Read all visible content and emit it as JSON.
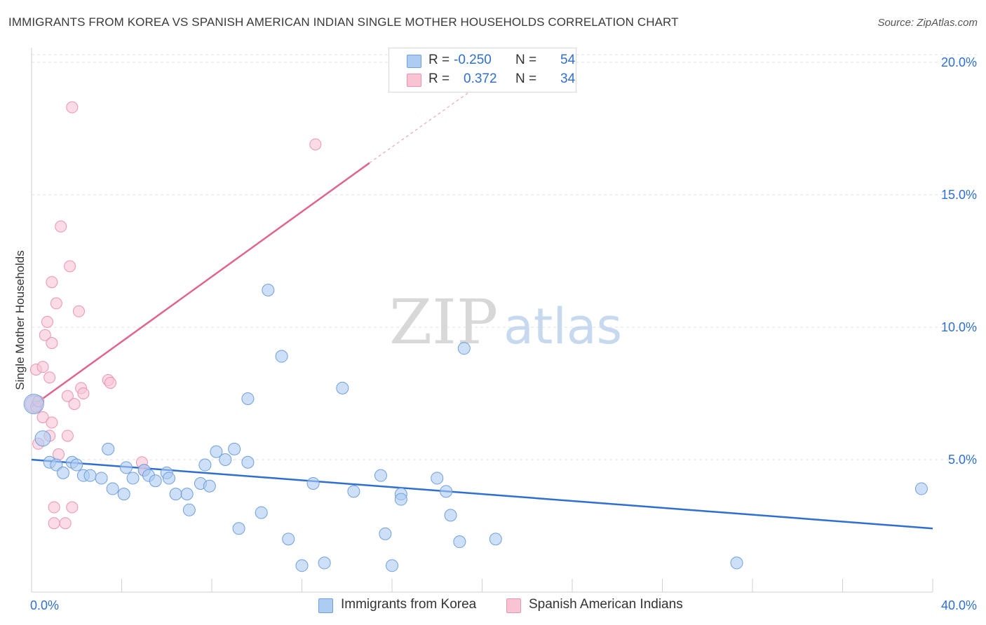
{
  "title": "IMMIGRANTS FROM KOREA VS SPANISH AMERICAN INDIAN SINGLE MOTHER HOUSEHOLDS CORRELATION CHART",
  "source": "Source: ZipAtlas.com",
  "watermark": {
    "zip": "ZIP",
    "atlas": "atlas"
  },
  "legend": [
    {
      "r_label": "R =",
      "r_value": "-0.250",
      "n_label": "N =",
      "n_value": "54"
    },
    {
      "r_label": "R =",
      "r_value": "0.372",
      "n_label": "N =",
      "n_value": "34"
    }
  ],
  "colors": {
    "blue_fill": "#aecbf2",
    "blue_stroke": "#6f9fe0",
    "blue_line": "#2e6fd1",
    "pink_fill": "#f8c3d3",
    "pink_stroke": "#ec94b2",
    "pink_line": "#e0658d",
    "tick_label": "#2f6fd1",
    "grid": "#e2e2e2"
  },
  "chart_data": {
    "type": "scatter",
    "title": "IMMIGRANTS FROM KOREA VS SPANISH AMERICAN INDIAN SINGLE MOTHER HOUSEHOLDS CORRELATION CHART",
    "xlabel": "",
    "ylabel": "Single Mother Households",
    "xlim": [
      0,
      40
    ],
    "ylim": [
      0,
      20.5
    ],
    "x_tick_labels": [
      "0.0%",
      "40.0%"
    ],
    "y_ticks": [
      5,
      10,
      15,
      20
    ],
    "y_tick_labels": [
      "5.0%",
      "10.0%",
      "15.0%",
      "20.0%"
    ],
    "grid": "horizontal dashed",
    "legend_position": "top-center",
    "series": [
      {
        "name": "Immigrants from Korea",
        "color": "blue",
        "points": [
          [
            0.1,
            7.1
          ],
          [
            0.5,
            5.8
          ],
          [
            0.8,
            4.9
          ],
          [
            1.1,
            4.8
          ],
          [
            1.4,
            4.5
          ],
          [
            1.8,
            4.9
          ],
          [
            2.0,
            4.8
          ],
          [
            2.3,
            4.4
          ],
          [
            2.6,
            4.4
          ],
          [
            3.1,
            4.3
          ],
          [
            3.4,
            5.4
          ],
          [
            3.6,
            3.9
          ],
          [
            4.2,
            4.7
          ],
          [
            4.1,
            3.7
          ],
          [
            4.5,
            4.3
          ],
          [
            5.0,
            4.6
          ],
          [
            5.2,
            4.4
          ],
          [
            5.5,
            4.2
          ],
          [
            6.0,
            4.5
          ],
          [
            6.1,
            4.3
          ],
          [
            6.4,
            3.7
          ],
          [
            6.9,
            3.7
          ],
          [
            7.0,
            3.1
          ],
          [
            7.5,
            4.1
          ],
          [
            7.7,
            4.8
          ],
          [
            7.9,
            4.0
          ],
          [
            8.2,
            5.3
          ],
          [
            8.6,
            5.0
          ],
          [
            9.0,
            5.4
          ],
          [
            9.2,
            2.4
          ],
          [
            9.6,
            4.9
          ],
          [
            9.6,
            7.3
          ],
          [
            10.2,
            3.0
          ],
          [
            10.5,
            11.4
          ],
          [
            11.1,
            8.9
          ],
          [
            11.4,
            2.0
          ],
          [
            12.0,
            1.0
          ],
          [
            12.5,
            4.1
          ],
          [
            13.0,
            1.1
          ],
          [
            13.8,
            7.7
          ],
          [
            14.3,
            3.8
          ],
          [
            15.5,
            4.4
          ],
          [
            15.7,
            2.2
          ],
          [
            16.0,
            1.0
          ],
          [
            16.4,
            3.7
          ],
          [
            16.4,
            3.5
          ],
          [
            18.0,
            4.3
          ],
          [
            18.4,
            3.8
          ],
          [
            18.6,
            2.9
          ],
          [
            19.0,
            1.9
          ],
          [
            19.2,
            9.2
          ],
          [
            20.6,
            2.0
          ],
          [
            31.3,
            1.1
          ],
          [
            39.5,
            3.9
          ]
        ],
        "trend": {
          "x": [
            0,
            40
          ],
          "y": [
            5.0,
            2.4
          ]
        }
      },
      {
        "name": "Spanish American Indians",
        "color": "pink",
        "points": [
          [
            0.1,
            7.1
          ],
          [
            0.2,
            7.0
          ],
          [
            0.2,
            8.4
          ],
          [
            0.3,
            5.6
          ],
          [
            0.3,
            7.2
          ],
          [
            0.5,
            8.5
          ],
          [
            0.5,
            6.6
          ],
          [
            0.6,
            9.7
          ],
          [
            0.7,
            10.2
          ],
          [
            0.8,
            8.1
          ],
          [
            0.8,
            5.9
          ],
          [
            0.9,
            9.4
          ],
          [
            0.9,
            6.4
          ],
          [
            0.9,
            11.7
          ],
          [
            1.0,
            3.2
          ],
          [
            1.0,
            2.6
          ],
          [
            1.1,
            10.9
          ],
          [
            1.2,
            5.2
          ],
          [
            1.3,
            13.8
          ],
          [
            1.5,
            2.6
          ],
          [
            1.6,
            7.4
          ],
          [
            1.6,
            5.9
          ],
          [
            1.7,
            12.3
          ],
          [
            1.8,
            18.3
          ],
          [
            1.8,
            3.2
          ],
          [
            1.9,
            7.1
          ],
          [
            2.1,
            10.6
          ],
          [
            2.2,
            7.7
          ],
          [
            2.3,
            7.5
          ],
          [
            3.4,
            8.0
          ],
          [
            3.5,
            7.9
          ],
          [
            4.9,
            4.9
          ],
          [
            5.0,
            4.6
          ],
          [
            12.6,
            16.9
          ]
        ],
        "trend": {
          "x": [
            0,
            15
          ],
          "y": [
            7.0,
            16.2
          ]
        },
        "trend_extension": {
          "x": [
            15,
            19.8
          ],
          "y": [
            16.2,
            19.1
          ]
        }
      }
    ]
  },
  "bottom_legend": [
    "Immigrants from Korea",
    "Spanish American Indians"
  ]
}
